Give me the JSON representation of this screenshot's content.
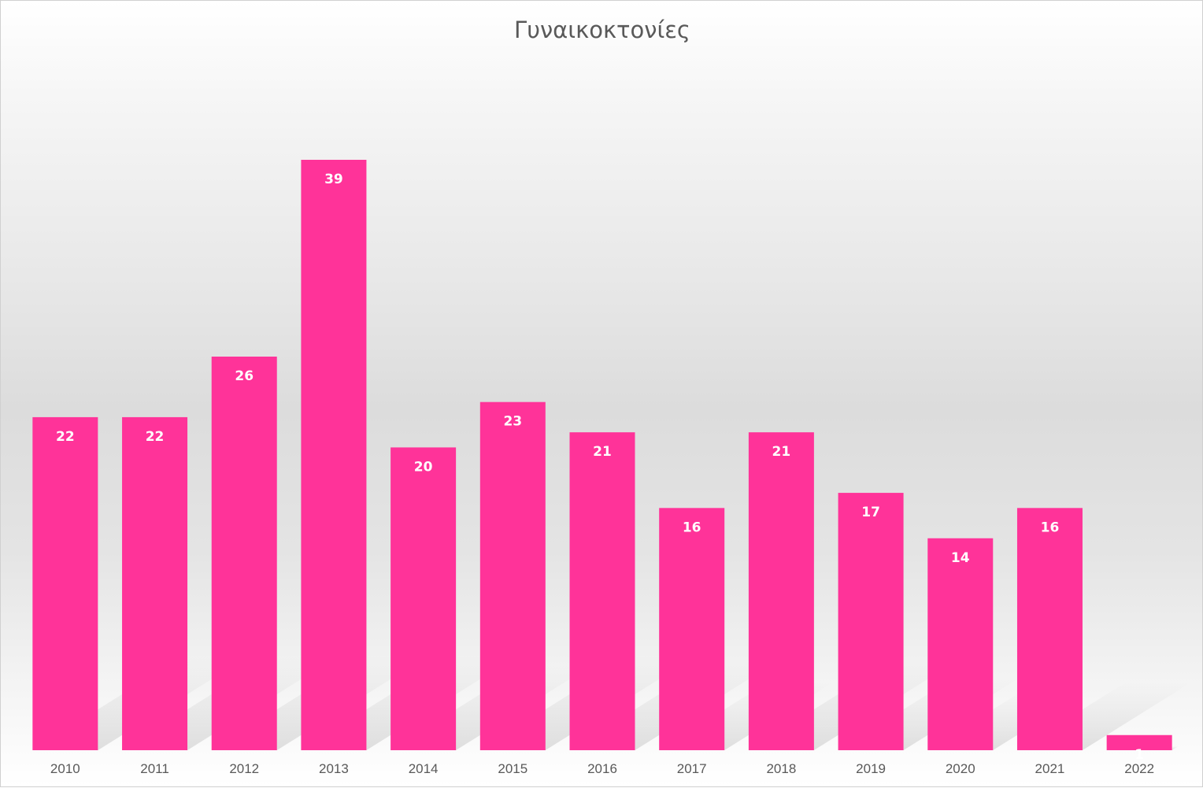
{
  "chart_data": {
    "type": "bar",
    "title": "Γυναικοκτονίες",
    "categories": [
      "2010",
      "2011",
      "2012",
      "2013",
      "2014",
      "2015",
      "2016",
      "2017",
      "2018",
      "2019",
      "2020",
      "2021",
      "2022"
    ],
    "series": [
      {
        "values": [
          22,
          22,
          26,
          39,
          20,
          23,
          21,
          16,
          21,
          17,
          14,
          16,
          1
        ]
      }
    ],
    "data_labels": true,
    "grid": false,
    "legend": "none",
    "ylim": [
      0,
      39
    ],
    "colors": {
      "bar": "#FF3399",
      "label": "#FFFFFF",
      "axis_text": "#595959"
    }
  }
}
